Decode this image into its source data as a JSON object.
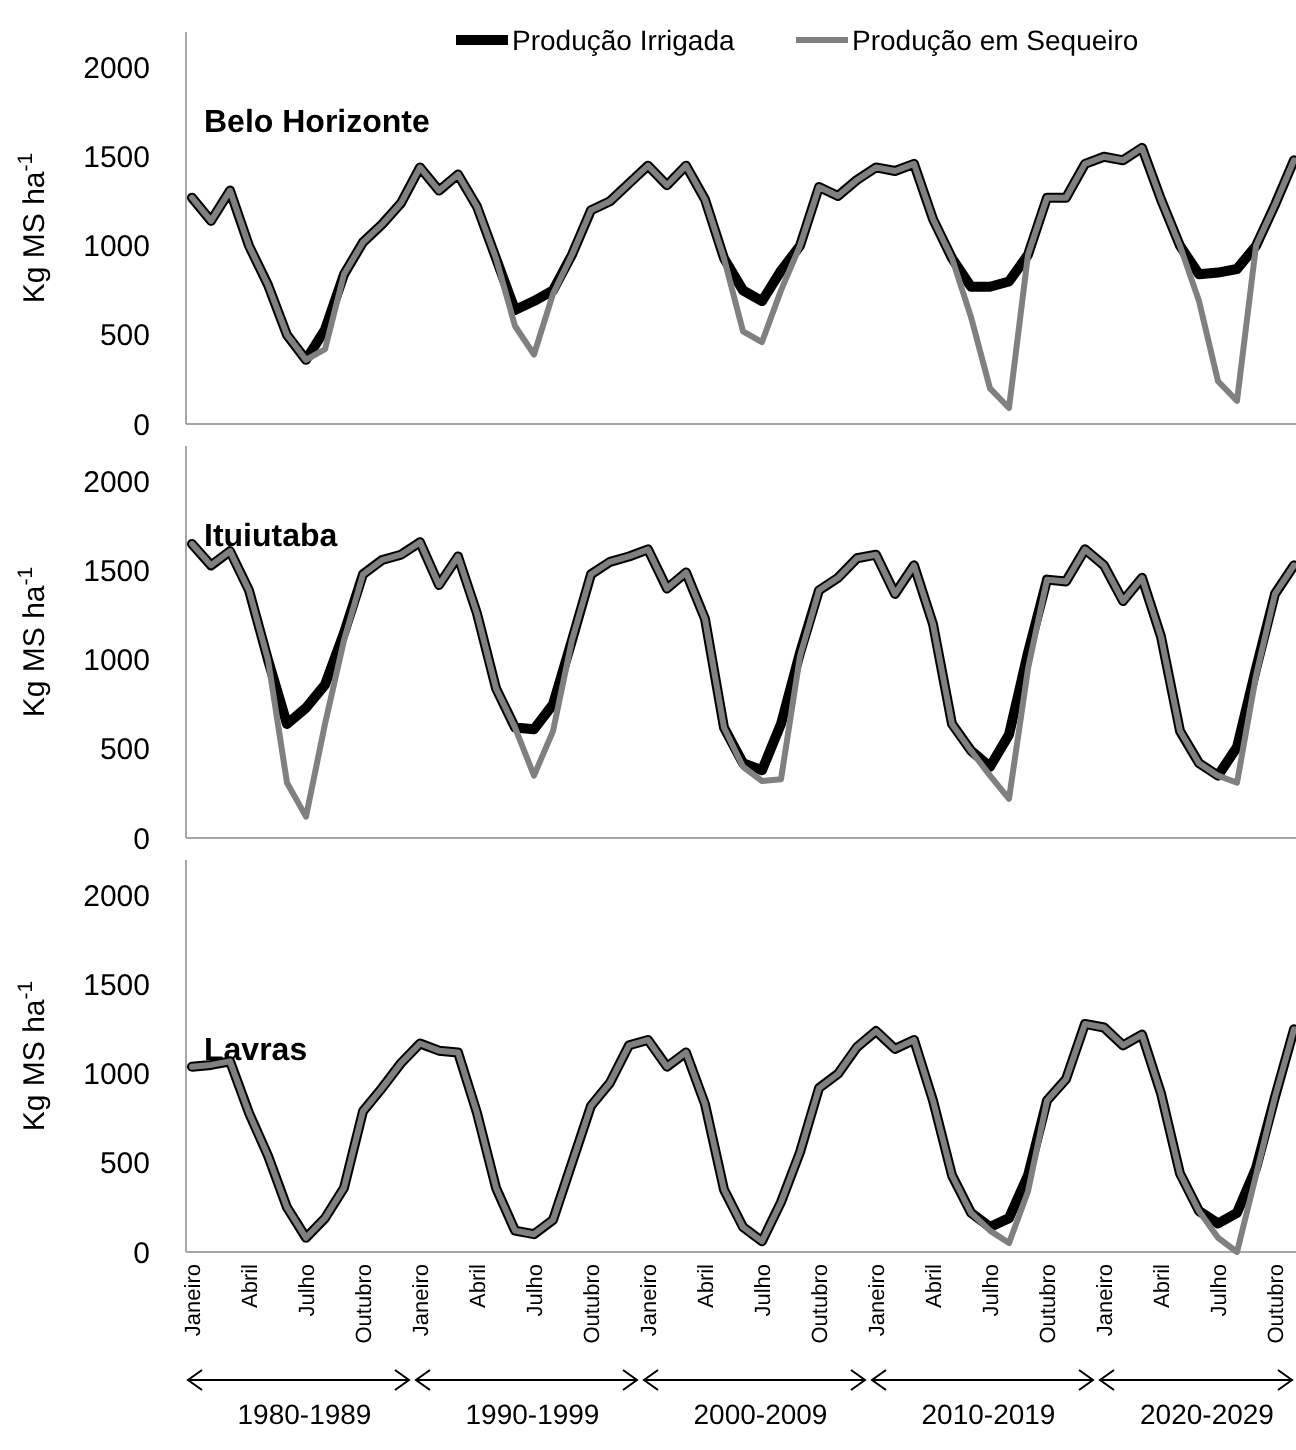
{
  "chart_data": [
    {
      "type": "line",
      "title": "Belo Horizonte",
      "ylabel": "Kg MS ha$^{-1}$",
      "ylim": [
        0,
        2200
      ],
      "yticks": [
        0,
        500,
        1000,
        1500,
        2000
      ],
      "tick_labels": "y",
      "legend": "top",
      "grid": false,
      "categories": [
        null,
        null,
        null,
        null,
        null,
        null,
        null,
        null,
        null,
        null,
        null,
        null,
        null,
        null,
        null,
        null,
        null,
        null,
        null,
        null,
        null,
        null,
        null,
        null,
        null,
        null,
        null,
        null,
        null,
        null,
        null,
        null,
        null,
        null,
        null,
        null,
        null,
        null,
        null,
        null,
        null,
        null,
        null,
        null,
        null,
        null,
        null,
        null,
        null,
        null,
        null,
        null,
        null,
        null,
        null,
        null,
        null,
        null,
        null
      ],
      "series": [
        {
          "name": "Produção Irrigada",
          "color": "#000000",
          "values": [
            1270,
            1140,
            1310,
            1000,
            780,
            500,
            360,
            530,
            840,
            1020,
            1120,
            1240,
            1440,
            1310,
            1400,
            1220,
            930,
            640,
            690,
            750,
            950,
            1200,
            1250,
            1350,
            1450,
            1340,
            1450,
            1260,
            930,
            750,
            690,
            860,
            1000,
            1330,
            1280,
            1370,
            1440,
            1420,
            1460,
            1150,
            930,
            770,
            770,
            800,
            950,
            1270,
            1270,
            1460,
            1500,
            1480,
            1550,
            1260,
            1000,
            840,
            850,
            870,
            1000,
            1230,
            1480
          ]
        },
        {
          "name": "Produção em Sequeiro",
          "color": "#808080",
          "values": [
            1270,
            1140,
            1310,
            1000,
            780,
            500,
            360,
            420,
            840,
            1020,
            1120,
            1240,
            1440,
            1310,
            1400,
            1220,
            930,
            550,
            390,
            730,
            950,
            1200,
            1250,
            1350,
            1450,
            1340,
            1450,
            1260,
            930,
            520,
            460,
            750,
            1000,
            1330,
            1280,
            1370,
            1440,
            1420,
            1460,
            1150,
            930,
            600,
            200,
            90,
            950,
            1270,
            1270,
            1460,
            1500,
            1480,
            1550,
            1260,
            1000,
            690,
            240,
            130,
            1000,
            1230,
            1480
          ]
        }
      ]
    },
    {
      "type": "line",
      "title": "Ituiutaba",
      "ylabel": "Kg MS ha$^{-1}$",
      "ylim": [
        0,
        2200
      ],
      "yticks": [
        0,
        500,
        1000,
        1500,
        2000
      ],
      "tick_labels": "y",
      "grid": false,
      "categories": [
        null,
        null,
        null,
        null,
        null,
        null,
        null,
        null,
        null,
        null,
        null,
        null,
        null,
        null,
        null,
        null,
        null,
        null,
        null,
        null,
        null,
        null,
        null,
        null,
        null,
        null,
        null,
        null,
        null,
        null,
        null,
        null,
        null,
        null,
        null,
        null,
        null,
        null,
        null,
        null,
        null,
        null,
        null,
        null,
        null,
        null,
        null,
        null,
        null,
        null,
        null,
        null,
        null,
        null,
        null,
        null,
        null,
        null,
        null
      ],
      "series": [
        {
          "color": "#000000",
          "values": [
            1650,
            1530,
            1610,
            1390,
            1000,
            640,
            730,
            860,
            1150,
            1480,
            1560,
            1590,
            1660,
            1420,
            1580,
            1260,
            840,
            620,
            610,
            750,
            1110,
            1480,
            1550,
            1580,
            1620,
            1400,
            1490,
            1230,
            620,
            420,
            380,
            640,
            1040,
            1390,
            1460,
            1570,
            1590,
            1370,
            1530,
            1200,
            640,
            490,
            400,
            580,
            1040,
            1450,
            1440,
            1620,
            1530,
            1330,
            1460,
            1130,
            600,
            420,
            350,
            510,
            950,
            1370,
            1530
          ]
        },
        {
          "color": "#808080",
          "values": [
            1650,
            1530,
            1610,
            1390,
            1000,
            310,
            120,
            640,
            1110,
            1480,
            1560,
            1590,
            1660,
            1420,
            1580,
            1260,
            840,
            620,
            350,
            600,
            1110,
            1480,
            1550,
            1580,
            1620,
            1400,
            1490,
            1230,
            620,
            400,
            320,
            330,
            1020,
            1390,
            1460,
            1570,
            1590,
            1370,
            1530,
            1200,
            640,
            490,
            350,
            220,
            950,
            1450,
            1440,
            1620,
            1530,
            1330,
            1460,
            1130,
            600,
            420,
            350,
            310,
            910,
            1370,
            1530
          ]
        }
      ]
    },
    {
      "type": "line",
      "title": "Lavras",
      "ylabel": "Kg MS ha$^{-1}$",
      "ylim": [
        0,
        2200
      ],
      "yticks": [
        0,
        500,
        1000,
        1500,
        2000
      ],
      "grid": false,
      "annotations": [
        "1980-1989",
        "1990-1999",
        "2000-2009",
        "2010-2019",
        "2020-2029"
      ],
      "categories": [
        "Janeiro",
        null,
        null,
        "Abril",
        null,
        null,
        "Julho",
        null,
        null,
        "Outubro",
        null,
        null,
        "Janeiro",
        null,
        null,
        "Abril",
        null,
        null,
        "Julho",
        null,
        null,
        "Outubro",
        null,
        null,
        "Janeiro",
        null,
        null,
        "Abril",
        null,
        null,
        "Julho",
        null,
        null,
        "Outubro",
        null,
        null,
        "Janeiro",
        null,
        null,
        "Abril",
        null,
        null,
        "Julho",
        null,
        null,
        "Outubro",
        null,
        null,
        "Janeiro",
        null,
        null,
        "Abril",
        null,
        null,
        "Julho",
        null,
        null,
        "Outubro",
        null
      ],
      "series": [
        {
          "color": "#000000",
          "values": [
            1040,
            1050,
            1070,
            780,
            540,
            250,
            80,
            190,
            360,
            790,
            920,
            1060,
            1170,
            1130,
            1120,
            780,
            360,
            120,
            100,
            180,
            500,
            820,
            950,
            1160,
            1190,
            1040,
            1120,
            830,
            350,
            140,
            60,
            280,
            560,
            920,
            1000,
            1150,
            1240,
            1140,
            1190,
            850,
            430,
            220,
            140,
            190,
            430,
            850,
            970,
            1280,
            1260,
            1160,
            1220,
            890,
            440,
            230,
            160,
            220,
            470,
            870,
            1250
          ]
        },
        {
          "color": "#808080",
          "values": [
            1040,
            1050,
            1070,
            780,
            540,
            250,
            80,
            190,
            360,
            790,
            920,
            1060,
            1170,
            1130,
            1120,
            780,
            360,
            120,
            100,
            180,
            500,
            820,
            950,
            1160,
            1190,
            1040,
            1120,
            830,
            350,
            140,
            60,
            280,
            560,
            920,
            1000,
            1150,
            1240,
            1140,
            1190,
            850,
            430,
            220,
            120,
            50,
            340,
            850,
            970,
            1280,
            1260,
            1160,
            1220,
            890,
            440,
            230,
            80,
            0,
            430,
            870,
            1250
          ]
        }
      ]
    }
  ]
}
